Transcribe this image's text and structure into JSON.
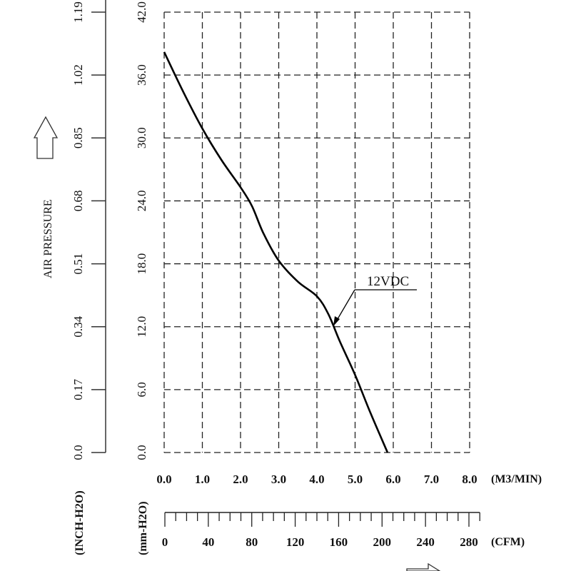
{
  "chart_data": {
    "type": "line",
    "title": "",
    "ylabel": "AIR PRESSURE",
    "y_units_left": "(INCH-H2O)",
    "y_units_right": "(mm-H2O)",
    "xlabel_top_units": "(M3/MIN)",
    "xlabel_bottom_units": "(CFM)",
    "xlim": [
      0,
      8
    ],
    "ylim": [
      0,
      42
    ],
    "grid": true,
    "x_ticks": [
      "0.0",
      "1.0",
      "2.0",
      "3.0",
      "4.0",
      "5.0",
      "6.0",
      "7.0",
      "8.0"
    ],
    "y_ticks_mm": [
      "0.0",
      "6.0",
      "12.0",
      "18.0",
      "24.0",
      "30.0",
      "36.0",
      "42.0"
    ],
    "y_ticks_inch": [
      "0.0",
      "0.17",
      "0.34",
      "0.51",
      "0.68",
      "0.85",
      "1.02",
      "1.19"
    ],
    "cfm_ticks": [
      "0",
      "40",
      "80",
      "120",
      "160",
      "200",
      "240",
      "280"
    ],
    "cfm_range": [
      0,
      290
    ],
    "series": [
      {
        "name": "12VDC",
        "x": [
          0.0,
          0.5,
          1.0,
          1.5,
          2.0,
          2.3,
          2.6,
          3.0,
          3.5,
          4.0,
          4.3,
          4.6,
          5.0,
          5.4,
          5.85
        ],
        "y": [
          38.2,
          34.4,
          30.9,
          27.9,
          25.3,
          23.5,
          20.9,
          18.3,
          16.3,
          14.9,
          13.2,
          10.6,
          7.4,
          3.8,
          0.0
        ]
      }
    ]
  }
}
